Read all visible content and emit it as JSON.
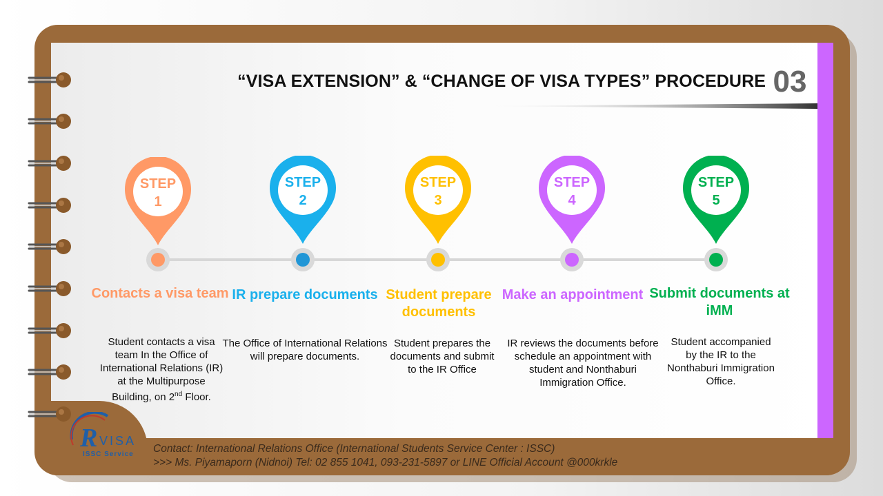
{
  "header": {
    "title": "“VISA EXTENSION” & “CHANGE OF VISA TYPES” PROCEDURE",
    "page_number": "03"
  },
  "steps": [
    {
      "pin_word": "STEP",
      "number": "1",
      "color": "#ff9966",
      "title": "Contacts a visa team",
      "description_lines": [
        "Student contacts a visa",
        "team In the Office of",
        "International Relations (IR)",
        "at the Multipurpose"
      ],
      "floor_prefix": "Building, on 2",
      "floor_sup": "nd",
      "floor_suffix": " Floor."
    },
    {
      "pin_word": "STEP",
      "number": "2",
      "color": "#1ab0ec",
      "title": "IR prepare documents",
      "description": "The Office of International Relations will prepare documents."
    },
    {
      "pin_word": "STEP",
      "number": "3",
      "color": "#ffc000",
      "title": "Student prepare documents",
      "description": "Student prepares the documents and submit to the IR Office"
    },
    {
      "pin_word": "STEP",
      "number": "4",
      "color": "#cc66ff",
      "title": "Make an appointment",
      "description": "IR reviews the documents before schedule an appointment with student and Nonthaburi Immigration Office."
    },
    {
      "pin_word": "STEP",
      "number": "5",
      "color": "#00b050",
      "title": "Submit documents at iMM",
      "description": "Student accompanied by the IR to the Nonthaburi Immigration Office."
    }
  ],
  "logo": {
    "letters": "VISA",
    "tagline": "ISSC Service"
  },
  "footer": {
    "contact_line": "Contact: International Relations Office (International Students Service Center : ISSC)",
    "person_line": ">>>  Ms. Piyamaporn (Nidnoi)  Tel: 02 855 1041, 093-231-5897 or LINE Official Account @000krkle"
  },
  "colors": {
    "frame": "#9b6a3a",
    "accent_strip": "#cc66ff"
  }
}
